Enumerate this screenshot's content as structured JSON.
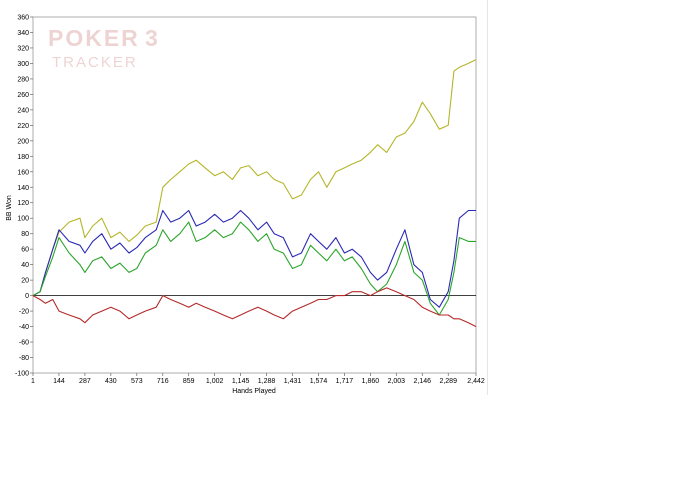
{
  "watermark": {
    "line1": "POKER",
    "line1_digit": "3",
    "line2": "TRACKER"
  },
  "chart_data": {
    "type": "line",
    "xlabel": "Hands Played",
    "ylabel": "BB Won",
    "xlim": [
      1,
      2442
    ],
    "ylim": [
      -100,
      360
    ],
    "xticks": [
      "1",
      "144",
      "287",
      "430",
      "573",
      "716",
      "859",
      "1,002",
      "1,145",
      "1,288",
      "1,431",
      "1,574",
      "1,717",
      "1,860",
      "2,003",
      "2,146",
      "2,289",
      "2,442"
    ],
    "xtick_values": [
      1,
      144,
      287,
      430,
      573,
      716,
      859,
      1002,
      1145,
      1288,
      1431,
      1574,
      1717,
      1860,
      2003,
      2146,
      2289,
      2442
    ],
    "yticks": [
      -100,
      -80,
      -60,
      -40,
      -20,
      0,
      20,
      40,
      60,
      80,
      100,
      120,
      140,
      160,
      180,
      200,
      220,
      240,
      260,
      280,
      300,
      320,
      340,
      360
    ],
    "zero_line": true,
    "series": [
      {
        "color": "#b5b52a",
        "x": [
          1,
          40,
          70,
          110,
          144,
          200,
          260,
          287,
          330,
          380,
          430,
          480,
          530,
          573,
          620,
          680,
          716,
          760,
          810,
          859,
          900,
          950,
          1002,
          1050,
          1100,
          1145,
          1190,
          1240,
          1288,
          1330,
          1380,
          1431,
          1480,
          1530,
          1574,
          1620,
          1670,
          1717,
          1760,
          1810,
          1860,
          1900,
          1950,
          2003,
          2050,
          2100,
          2146,
          2190,
          2240,
          2289,
          2320,
          2350,
          2400,
          2442
        ],
        "values": [
          0,
          5,
          30,
          60,
          82,
          95,
          100,
          75,
          90,
          100,
          75,
          82,
          70,
          78,
          90,
          95,
          140,
          150,
          160,
          170,
          175,
          165,
          155,
          160,
          150,
          165,
          168,
          155,
          160,
          150,
          145,
          125,
          130,
          150,
          160,
          140,
          160,
          165,
          170,
          175,
          185,
          195,
          185,
          205,
          210,
          225,
          250,
          235,
          215,
          220,
          290,
          295,
          300,
          305
        ]
      },
      {
        "color": "#2929b5",
        "x": [
          1,
          40,
          70,
          110,
          144,
          200,
          260,
          287,
          330,
          380,
          430,
          480,
          530,
          573,
          620,
          680,
          716,
          760,
          810,
          859,
          900,
          950,
          1002,
          1050,
          1100,
          1145,
          1190,
          1240,
          1288,
          1330,
          1380,
          1431,
          1480,
          1530,
          1574,
          1620,
          1670,
          1717,
          1760,
          1810,
          1860,
          1900,
          1950,
          2003,
          2050,
          2100,
          2146,
          2190,
          2240,
          2289,
          2320,
          2350,
          2400,
          2442
        ],
        "values": [
          0,
          5,
          30,
          60,
          85,
          70,
          65,
          55,
          70,
          80,
          60,
          68,
          55,
          62,
          75,
          85,
          110,
          95,
          100,
          110,
          90,
          95,
          105,
          95,
          100,
          110,
          100,
          85,
          95,
          80,
          75,
          50,
          55,
          80,
          70,
          60,
          75,
          55,
          60,
          50,
          30,
          20,
          30,
          60,
          85,
          40,
          30,
          -5,
          -15,
          5,
          45,
          100,
          110,
          110
        ]
      },
      {
        "color": "#2aa52a",
        "x": [
          1,
          40,
          70,
          110,
          144,
          200,
          260,
          287,
          330,
          380,
          430,
          480,
          530,
          573,
          620,
          680,
          716,
          760,
          810,
          859,
          900,
          950,
          1002,
          1050,
          1100,
          1145,
          1190,
          1240,
          1288,
          1330,
          1380,
          1431,
          1480,
          1530,
          1574,
          1620,
          1670,
          1717,
          1760,
          1810,
          1860,
          1900,
          1950,
          2003,
          2050,
          2100,
          2146,
          2190,
          2240,
          2289,
          2320,
          2350,
          2400,
          2442
        ],
        "values": [
          0,
          5,
          25,
          50,
          75,
          55,
          40,
          30,
          45,
          50,
          35,
          42,
          30,
          35,
          55,
          65,
          85,
          70,
          80,
          95,
          70,
          75,
          85,
          75,
          80,
          95,
          85,
          70,
          80,
          60,
          55,
          35,
          40,
          65,
          55,
          45,
          60,
          45,
          50,
          35,
          15,
          5,
          15,
          40,
          70,
          30,
          20,
          -10,
          -25,
          -5,
          30,
          75,
          70,
          70
        ]
      },
      {
        "color": "#b52a2a",
        "x": [
          1,
          40,
          70,
          110,
          144,
          200,
          260,
          287,
          330,
          380,
          430,
          480,
          530,
          573,
          620,
          680,
          716,
          760,
          810,
          859,
          900,
          950,
          1002,
          1050,
          1100,
          1145,
          1190,
          1240,
          1288,
          1330,
          1380,
          1431,
          1480,
          1530,
          1574,
          1620,
          1670,
          1717,
          1760,
          1810,
          1860,
          1900,
          1950,
          2003,
          2050,
          2100,
          2146,
          2190,
          2240,
          2289,
          2320,
          2350,
          2400,
          2442
        ],
        "values": [
          0,
          -5,
          -10,
          -5,
          -20,
          -25,
          -30,
          -35,
          -25,
          -20,
          -15,
          -20,
          -30,
          -25,
          -20,
          -15,
          0,
          -5,
          -10,
          -15,
          -10,
          -15,
          -20,
          -25,
          -30,
          -25,
          -20,
          -15,
          -20,
          -25,
          -30,
          -20,
          -15,
          -10,
          -5,
          -5,
          0,
          0,
          5,
          5,
          0,
          5,
          10,
          5,
          0,
          -5,
          -15,
          -20,
          -25,
          -25,
          -30,
          -30,
          -35,
          -40
        ]
      }
    ]
  }
}
